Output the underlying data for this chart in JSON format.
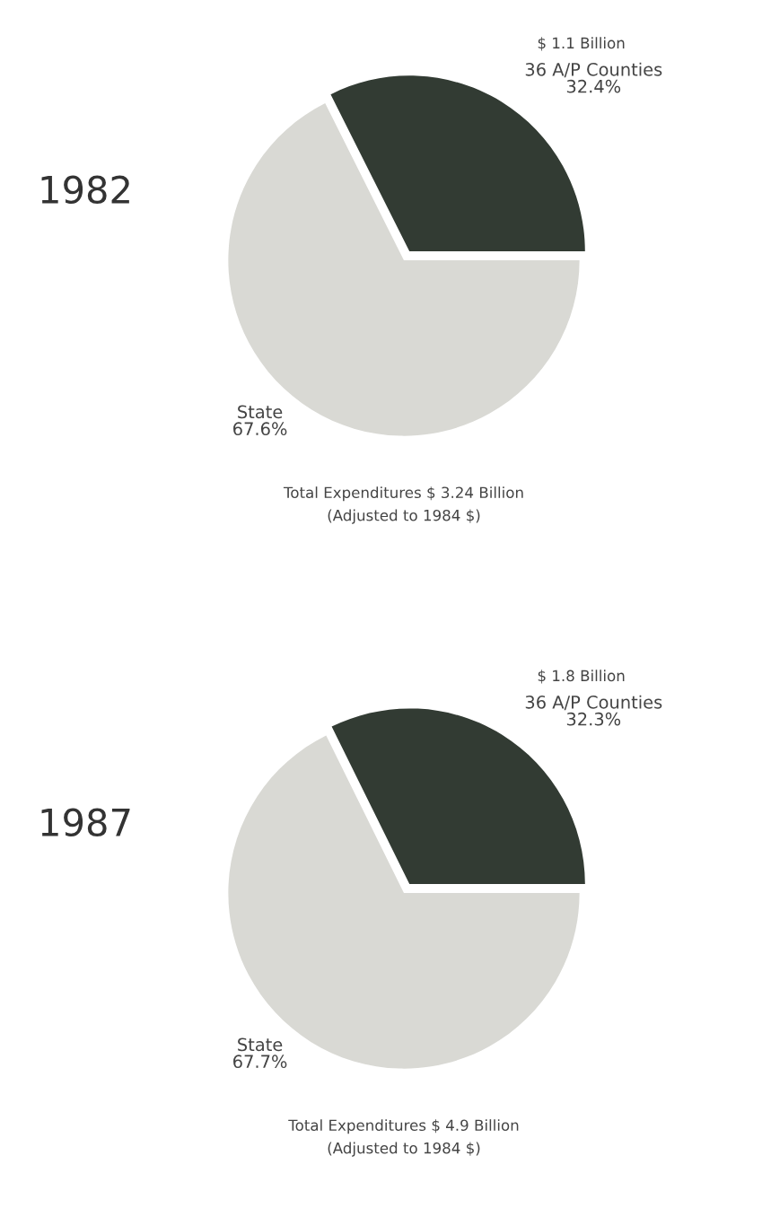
{
  "chart_data": [
    {
      "type": "pie",
      "title": "1982",
      "categories": [
        "36 A/P Counties",
        "State"
      ],
      "values": [
        32.4,
        67.6
      ],
      "value_labels": [
        "32.4%",
        "67.6%"
      ],
      "colors": [
        "#323b33",
        "#d9d9d4"
      ],
      "annotations": [
        {
          "text": "$ 1.1 Billion",
          "x": "36 A/P Counties"
        },
        "Total Expenditures $ 3.24 Billion",
        "(Adjusted to 1984 $)"
      ]
    },
    {
      "type": "pie",
      "title": "1987",
      "categories": [
        "36 A/P Counties",
        "State"
      ],
      "values": [
        32.3,
        67.7
      ],
      "value_labels": [
        "32.3%",
        "67.7%"
      ],
      "colors": [
        "#323b33",
        "#d9d9d4"
      ],
      "annotations": [
        {
          "text": "$ 1.8 Billion",
          "x": "36 A/P Counties"
        },
        "Total Expenditures $ 4.9 Billion",
        "(Adjusted to 1984 $)"
      ]
    }
  ]
}
